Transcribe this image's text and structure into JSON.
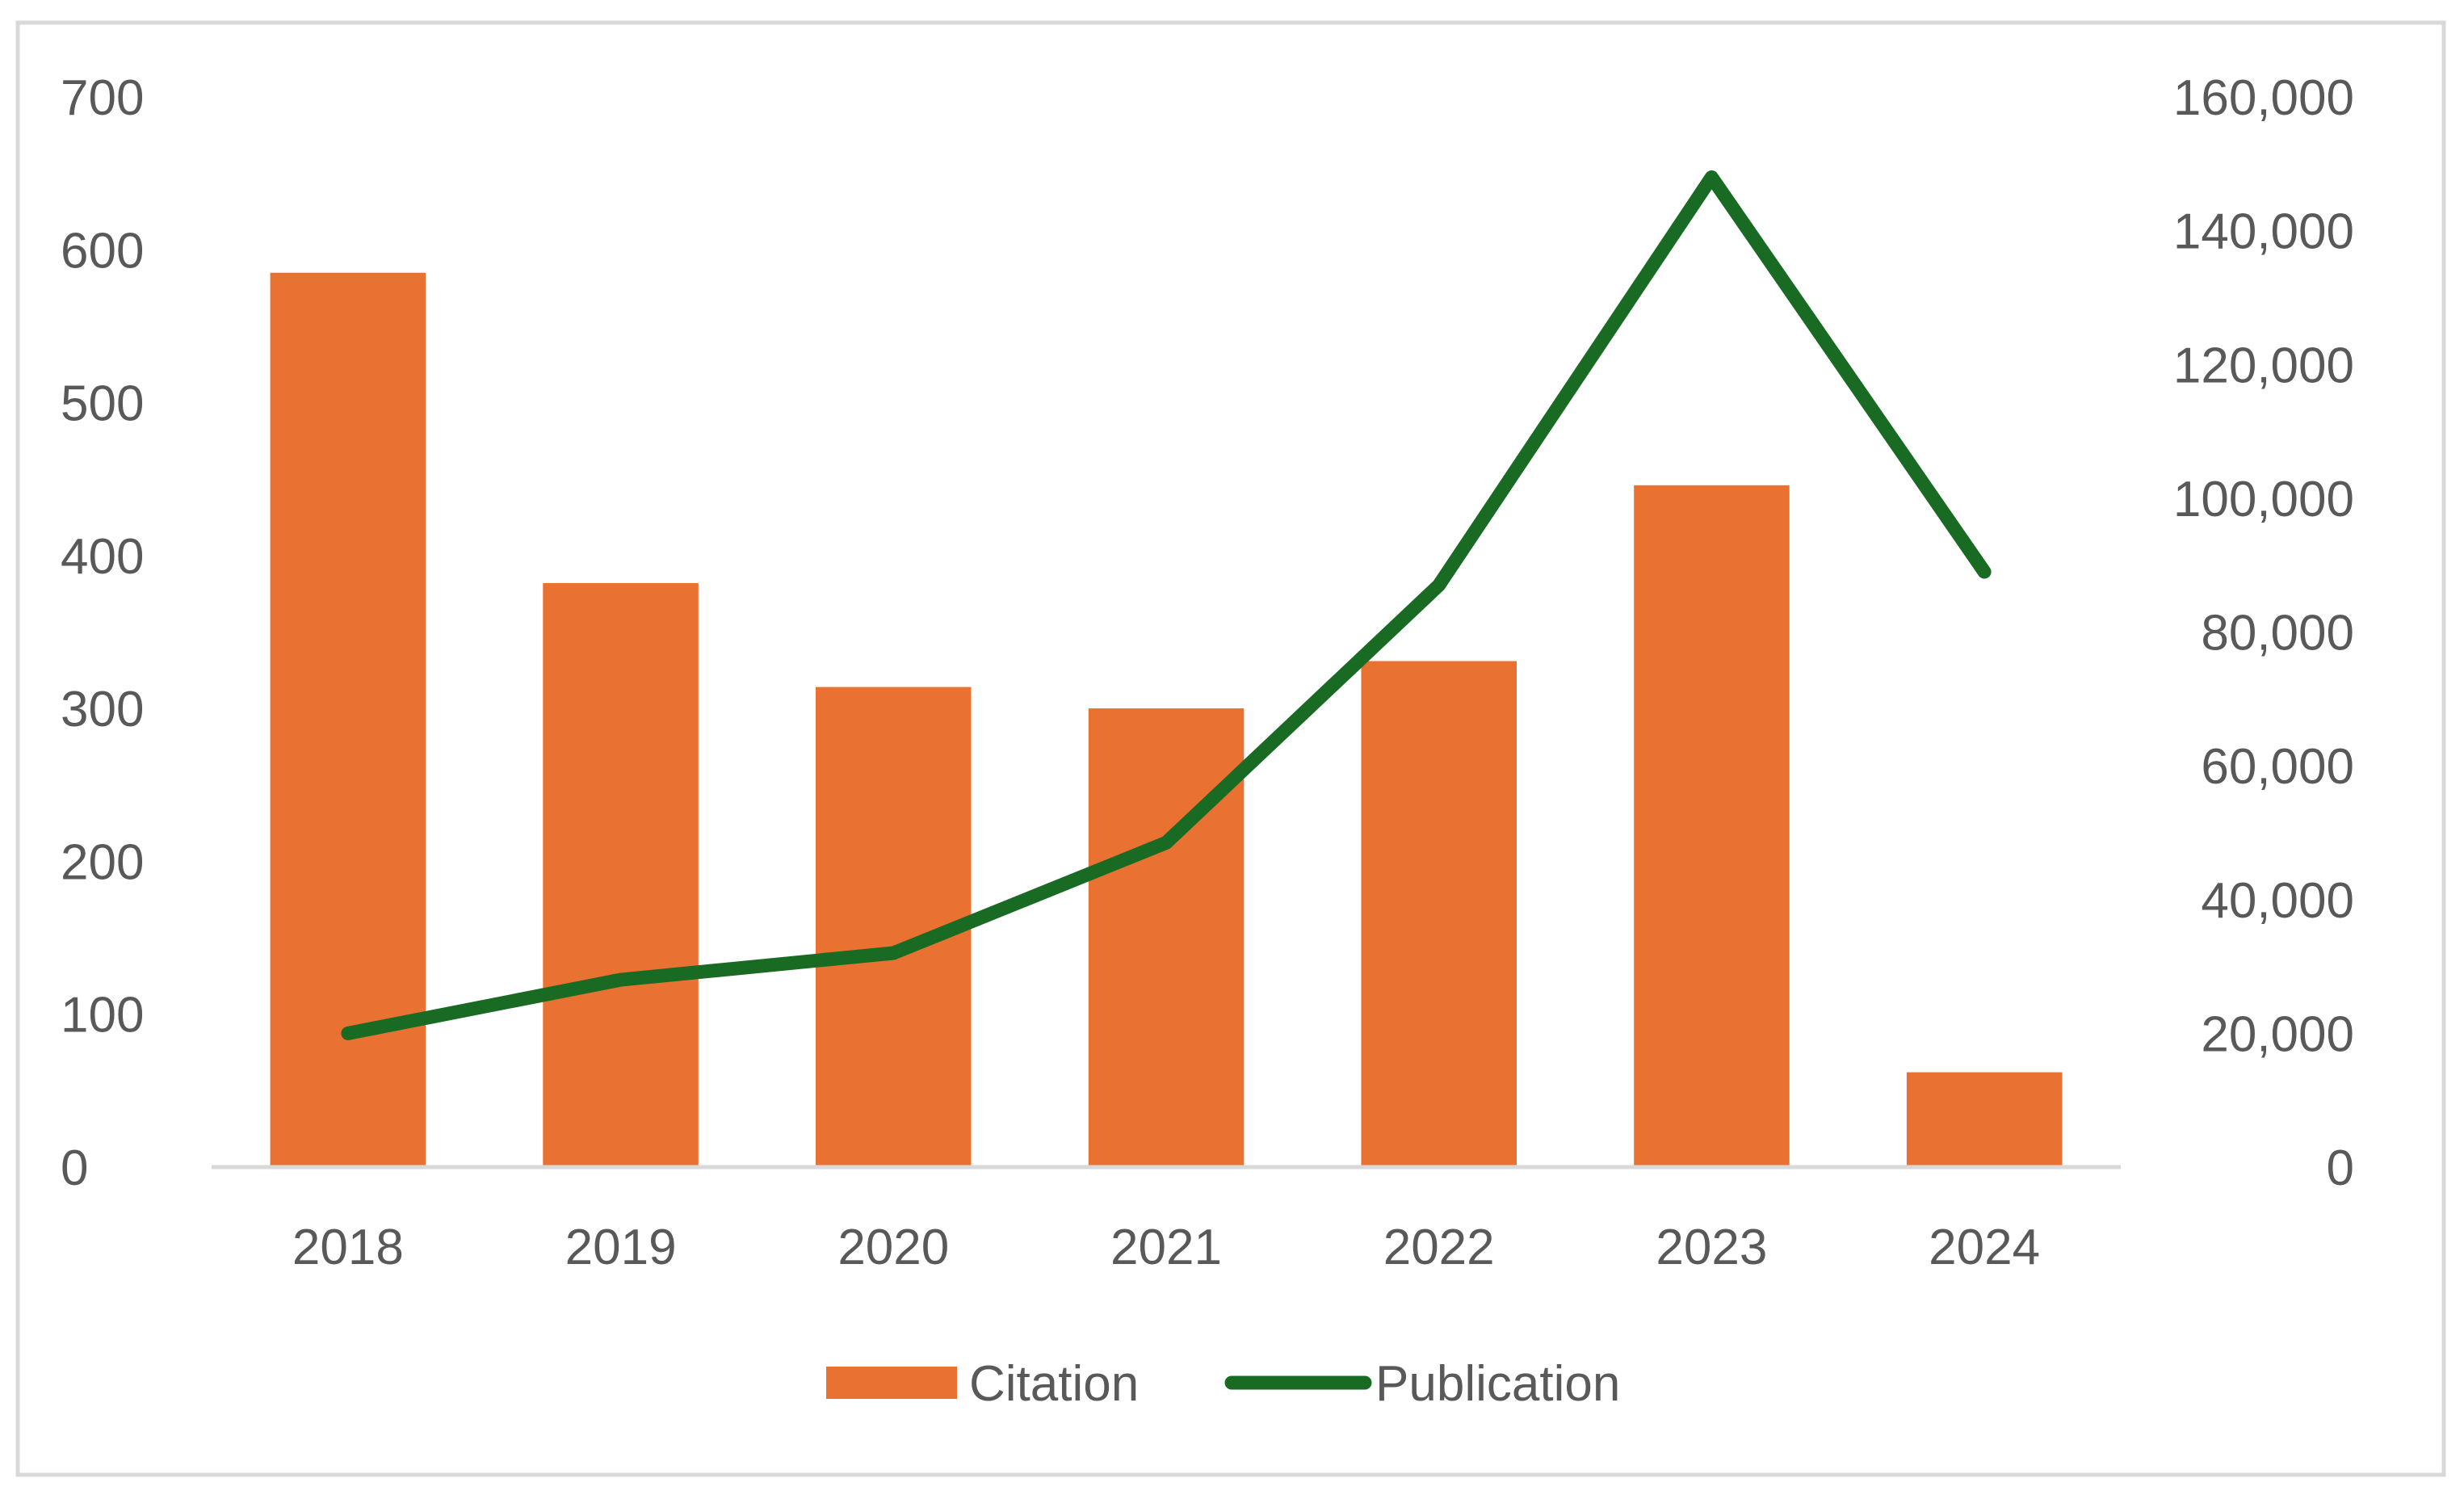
{
  "chart_data": {
    "type": "bar",
    "title": "",
    "xlabel": "",
    "ylabel": "",
    "y2label": "",
    "categories": [
      "2018",
      "2019",
      "2020",
      "2021",
      "2022",
      "2023",
      "2024"
    ],
    "series": [
      {
        "name": "Citation",
        "type": "bar",
        "axis": "left",
        "color": "#E97132",
        "values": [
          585,
          382,
          314,
          300,
          331,
          446,
          62
        ]
      },
      {
        "name": "Publication",
        "type": "line",
        "axis": "right",
        "color": "#196B24",
        "values": [
          20000,
          28000,
          32000,
          48500,
          87000,
          148000,
          89000
        ]
      }
    ],
    "ylim": [
      0,
      700
    ],
    "yticks": [
      {
        "value": 0,
        "label": "0"
      },
      {
        "value": 100,
        "label": "100"
      },
      {
        "value": 200,
        "label": "200"
      },
      {
        "value": 300,
        "label": "300"
      },
      {
        "value": 400,
        "label": "400"
      },
      {
        "value": 500,
        "label": "500"
      },
      {
        "value": 600,
        "label": "600"
      },
      {
        "value": 700,
        "label": "700"
      }
    ],
    "y2lim": [
      0,
      160000
    ],
    "y2ticks": [
      {
        "value": 0,
        "label": "0"
      },
      {
        "value": 20000,
        "label": "20,000"
      },
      {
        "value": 40000,
        "label": "40,000"
      },
      {
        "value": 60000,
        "label": "60,000"
      },
      {
        "value": 80000,
        "label": "80,000"
      },
      {
        "value": 100000,
        "label": "100,000"
      },
      {
        "value": 120000,
        "label": "120,000"
      },
      {
        "value": 140000,
        "label": "140,000"
      },
      {
        "value": 160000,
        "label": "160,000"
      }
    ],
    "grid": false,
    "legend_position": "bottom",
    "axis_color": "#d9d9d9",
    "frame_color": "#d9d9d9",
    "text_color": "#595959"
  }
}
